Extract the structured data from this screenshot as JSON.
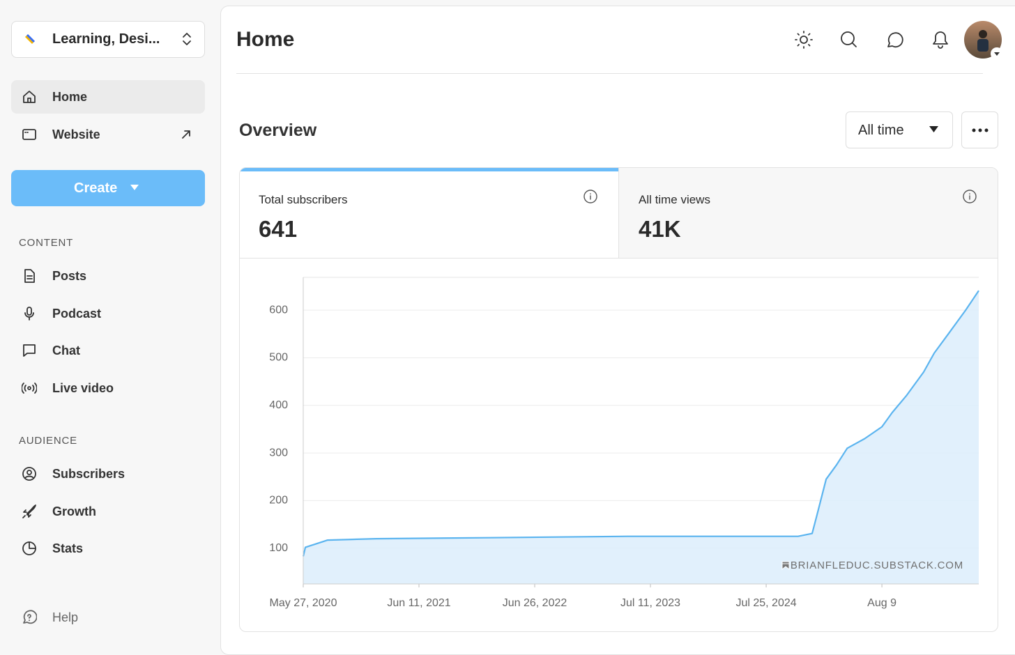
{
  "sidebar": {
    "workspace": "Learning, Desi...",
    "nav": [
      "Home",
      "Website"
    ],
    "create": "Create",
    "sections": [
      {
        "title": "CONTENT",
        "items": [
          "Posts",
          "Podcast",
          "Chat",
          "Live video"
        ]
      },
      {
        "title": "AUDIENCE",
        "items": [
          "Subscribers",
          "Growth",
          "Stats"
        ]
      }
    ],
    "help": "Help"
  },
  "header": {
    "title": "Home"
  },
  "overview": {
    "title": "Overview",
    "range": "All time",
    "cards": [
      {
        "label": "Total subscribers",
        "value": "641"
      },
      {
        "label": "All time views",
        "value": "41K"
      }
    ]
  },
  "chart_data": {
    "type": "area",
    "x": [
      "2020-05-27",
      "2020-06-03",
      "2020-07-12",
      "2020-08-15",
      "2021-01-22",
      "2022-01-24",
      "2023-04-26",
      "2024-07-27",
      "2024-11-07",
      "2024-12-23",
      "2025-01-08",
      "2025-02-07",
      "2025-03-13",
      "2025-04-17",
      "2025-06-13",
      "2025-08-09",
      "2025-09-12",
      "2025-10-28",
      "2025-12-24",
      "2026-01-28",
      "2026-03-15",
      "2026-05-11",
      "2026-06-23"
    ],
    "values": [
      83,
      102,
      110,
      117,
      120,
      122,
      125,
      125,
      125,
      131,
      170,
      245,
      275,
      310,
      330,
      355,
      385,
      420,
      470,
      510,
      550,
      600,
      641
    ],
    "color": "#5bb4ef",
    "fill": "#dcedfb",
    "xlim": [
      "2020-05-27",
      "2026-06-23"
    ],
    "ylim": [
      25,
      669
    ],
    "xticks": [
      {
        "value": "2020-05-27",
        "label": "May 27, 2020"
      },
      {
        "value": "2021-06-11",
        "label": "Jun 11, 2021"
      },
      {
        "value": "2022-06-26",
        "label": "Jun 26, 2022"
      },
      {
        "value": "2023-07-11",
        "label": "Jul 11, 2023"
      },
      {
        "value": "2024-07-25",
        "label": "Jul 25, 2024"
      },
      {
        "value": "2025-08-09",
        "label": "Aug 9"
      }
    ],
    "yticks": [
      100,
      200,
      300,
      400,
      500,
      600
    ],
    "grid": true,
    "watermark": "BRIANFLEDUC.SUBSTACK.COM"
  }
}
